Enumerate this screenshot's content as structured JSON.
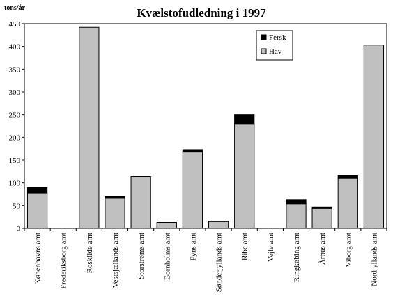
{
  "chart_data": {
    "type": "bar",
    "stacked": true,
    "title": "Kvælstofudledning i 1997",
    "ylabel": "tons/år",
    "xlabel": "",
    "ylim": [
      0,
      450
    ],
    "yticks": [
      0,
      50,
      100,
      150,
      200,
      250,
      300,
      350,
      400,
      450
    ],
    "grid": false,
    "legend_position": "top-right",
    "categories": [
      "Københavns amt",
      "Frederiksborg amt",
      "Roskilde amt",
      "Vestsjællands amt",
      "Storstrøms amt",
      "Bornholms amt",
      "Fyns amt",
      "Sønderjyllands amt",
      "Ribe amt",
      "Vejle amt",
      "Ringkøbing amt",
      "Århus amt",
      "Viborg amt",
      "Nordjyllands amt"
    ],
    "series": [
      {
        "name": "Hav",
        "color": "#c0c0c0",
        "values": [
          78,
          0,
          442,
          66,
          114,
          13,
          169,
          15,
          230,
          0,
          54,
          44,
          110,
          403
        ]
      },
      {
        "name": "Fersk",
        "color": "#000000",
        "values": [
          12,
          0,
          0,
          4,
          0,
          0,
          4,
          1,
          20,
          0,
          9,
          3,
          6,
          0
        ]
      }
    ]
  }
}
